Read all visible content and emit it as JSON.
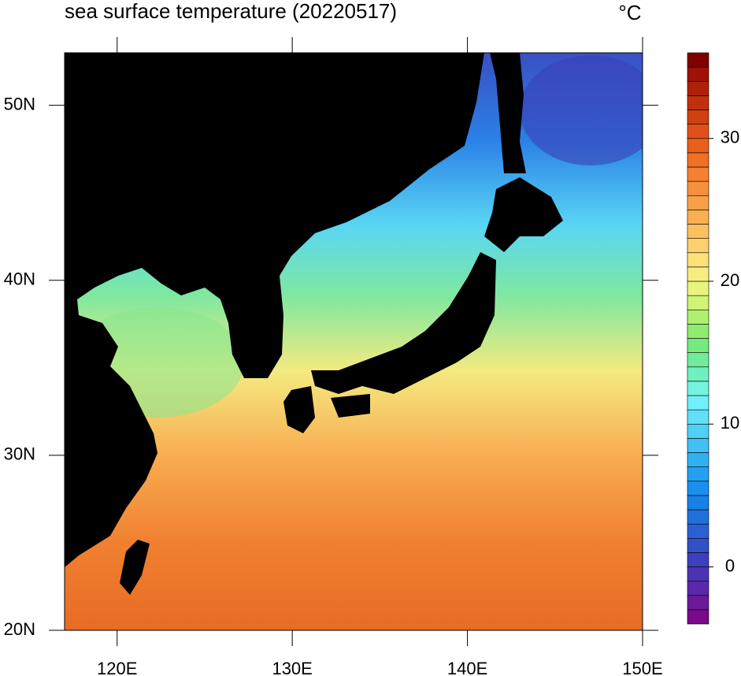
{
  "map": {
    "title": "sea surface temperature (20220517)",
    "unit_label": "°C",
    "xlim": [
      117,
      150
    ],
    "xticks": [
      {
        "value": 120,
        "label": "120E"
      },
      {
        "value": 130,
        "label": "130E"
      },
      {
        "value": 140,
        "label": "140E"
      },
      {
        "value": 150,
        "label": "150E"
      }
    ],
    "ylim": [
      20,
      53
    ],
    "yticks": [
      {
        "value": 20,
        "label": "20N"
      },
      {
        "value": 30,
        "label": "30N"
      },
      {
        "value": 40,
        "label": "40N"
      },
      {
        "value": 50,
        "label": "50N"
      }
    ],
    "colorbar": {
      "range": [
        -4,
        36
      ],
      "ticks": [
        0,
        10,
        20,
        30
      ],
      "colors": [
        "#7a0a8a",
        "#6a1a9a",
        "#5a28a8",
        "#4b34b4",
        "#3c40be",
        "#3250c8",
        "#2a60d2",
        "#2070dc",
        "#1880e6",
        "#1a90ee",
        "#24a0f0",
        "#30b0f2",
        "#40c0f4",
        "#50d0f6",
        "#60e0f8",
        "#70f0fa",
        "#74f4e0",
        "#70f0c0",
        "#70ec9c",
        "#78e880",
        "#90ec70",
        "#b0f070",
        "#d0f474",
        "#e8f47c",
        "#f8ec80",
        "#fce078",
        "#fcd06c",
        "#fcc060",
        "#fab052",
        "#f8a048",
        "#f6903c",
        "#f48030",
        "#f07024",
        "#e8601c",
        "#e05018",
        "#d04010",
        "#c0300c",
        "#b02008",
        "#a01004",
        "#800000"
      ]
    }
  }
}
